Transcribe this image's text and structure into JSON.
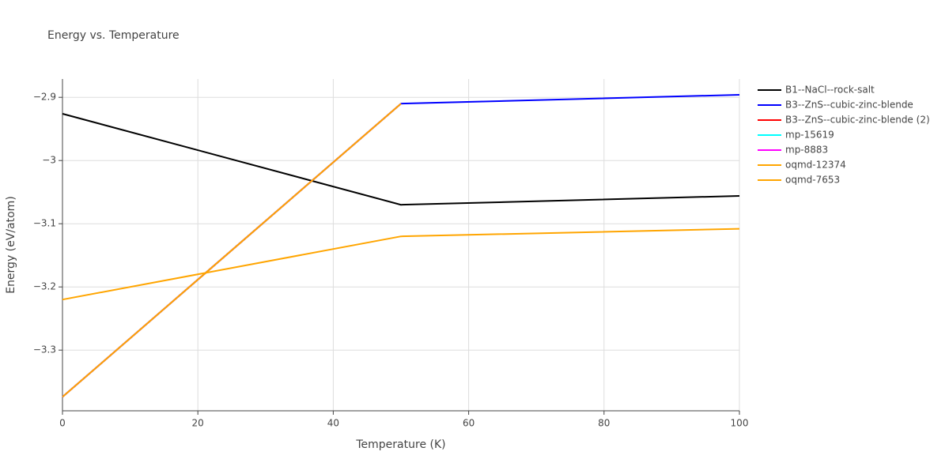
{
  "chart_data": {
    "type": "line",
    "title": "Energy vs. Temperature",
    "x_label": "Temperature (K)",
    "y_label": "Energy (eV/atom)",
    "x": [
      0,
      50,
      100
    ],
    "series": [
      {
        "name": "B1--NaCl--rock-salt",
        "color": "#000000",
        "values": [
          -2.926,
          -3.07,
          -3.056
        ]
      },
      {
        "name": "B3--ZnS--cubic-zinc-blende",
        "color": "#0000ff",
        "values": [
          -3.374,
          -2.91,
          -2.896
        ]
      },
      {
        "name": "B3--ZnS--cubic-zinc-blende (2)",
        "color": "#ff0000",
        "values": [
          -3.374,
          -2.91,
          null
        ]
      },
      {
        "name": "mp-15619",
        "color": "#00ffff",
        "values": [
          -3.374,
          -2.91,
          null
        ]
      },
      {
        "name": "mp-8883",
        "color": "#ff00ff",
        "values": [
          -3.374,
          -2.91,
          null
        ]
      },
      {
        "name": "oqmd-12374",
        "color": "#ffa500",
        "values": [
          -3.374,
          -2.91,
          null
        ]
      },
      {
        "name": "oqmd-7653",
        "color": "#ffa500",
        "values": [
          -3.22,
          -3.12,
          -3.108
        ]
      }
    ],
    "xlim": [
      0,
      100
    ],
    "xticks": [
      0,
      20,
      40,
      60,
      80,
      100
    ],
    "ylim": [
      -3.396,
      -2.871
    ],
    "yticks": [
      {
        "value": -2.9,
        "label": "−2.9"
      },
      {
        "value": -3.0,
        "label": "−3"
      },
      {
        "value": -3.1,
        "label": "−3.1"
      },
      {
        "value": -3.2,
        "label": "−3.2"
      },
      {
        "value": -3.3,
        "label": "−3.3"
      }
    ],
    "grid": true,
    "legend": "right"
  }
}
